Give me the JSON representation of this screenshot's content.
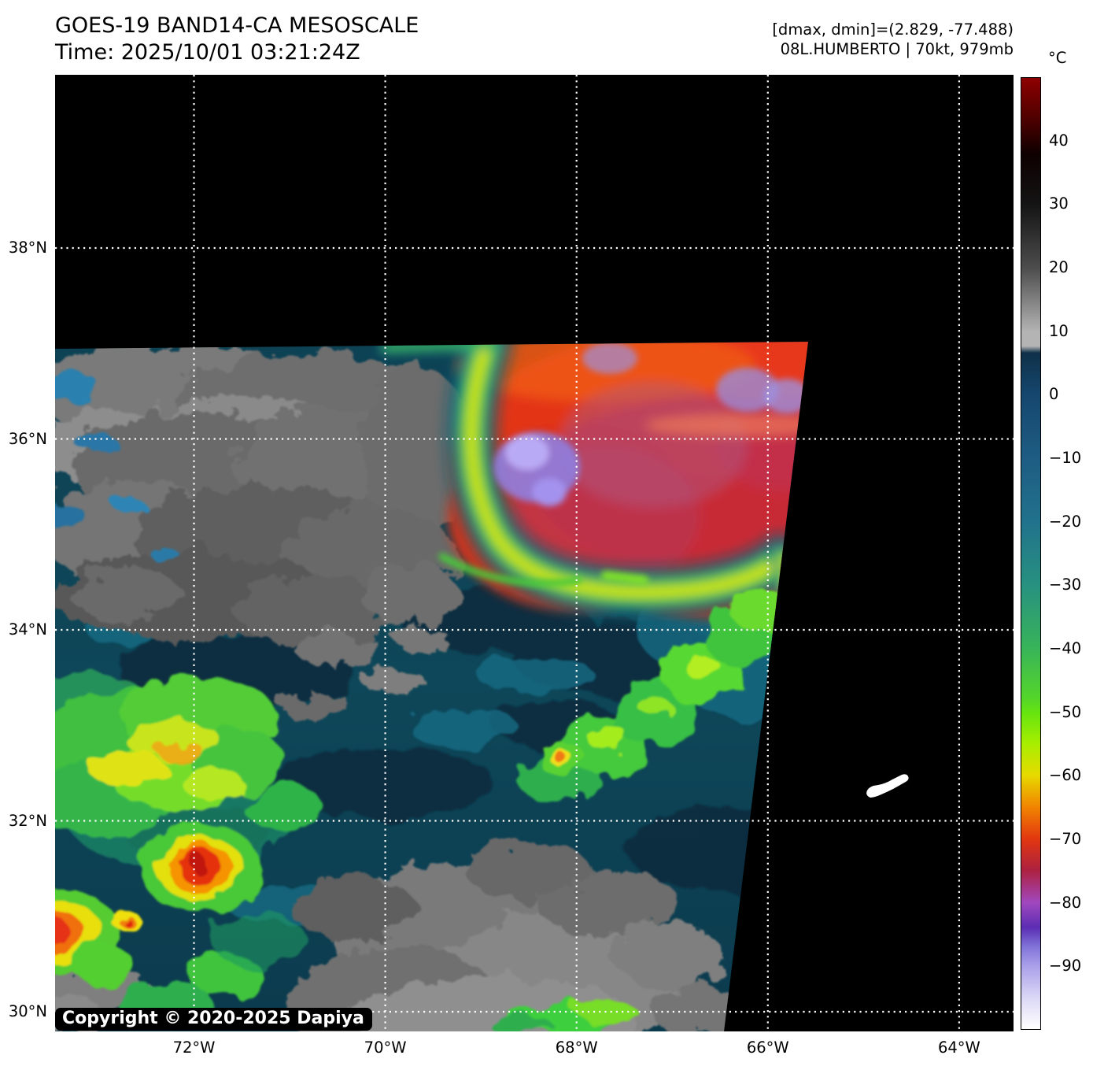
{
  "header": {
    "title": "GOES-19 BAND14-CA MESOSCALE",
    "time": "Time: 2025/10/01 03:21:24Z",
    "range_annotation": "[dmax, dmin]=(2.829, -77.488)",
    "storm_annotation": "08L.HUMBERTO | 70kt, 979mb"
  },
  "colorbar": {
    "unit": "°C",
    "max": 50,
    "min": -100,
    "ticks": [
      {
        "value": 40,
        "label": "40"
      },
      {
        "value": 30,
        "label": "30"
      },
      {
        "value": 20,
        "label": "20"
      },
      {
        "value": 10,
        "label": "10"
      },
      {
        "value": 0,
        "label": "0"
      },
      {
        "value": -10,
        "label": "−10"
      },
      {
        "value": -20,
        "label": "−20"
      },
      {
        "value": -30,
        "label": "−30"
      },
      {
        "value": -40,
        "label": "−40"
      },
      {
        "value": -50,
        "label": "−50"
      },
      {
        "value": -60,
        "label": "−60"
      },
      {
        "value": -70,
        "label": "−70"
      },
      {
        "value": -80,
        "label": "−80"
      },
      {
        "value": -90,
        "label": "−90"
      }
    ]
  },
  "map": {
    "lat_labels": [
      "38°N",
      "36°N",
      "34°N",
      "32°N",
      "30°N"
    ],
    "lon_labels": [
      "72°W",
      "70°W",
      "68°W",
      "66°W",
      "64°W"
    ],
    "copyright": "Copyright © 2020-2025 Dapiya"
  },
  "colors": {
    "page_background": "#ffffff",
    "plot_background": "#000000",
    "grid": "#ffffff",
    "sea_teal": "#0e4759",
    "cold_cloud_red": "#e23710",
    "overshoot_violet": "#8f80e0",
    "low_cloud_gray": "#6f6f6f"
  }
}
